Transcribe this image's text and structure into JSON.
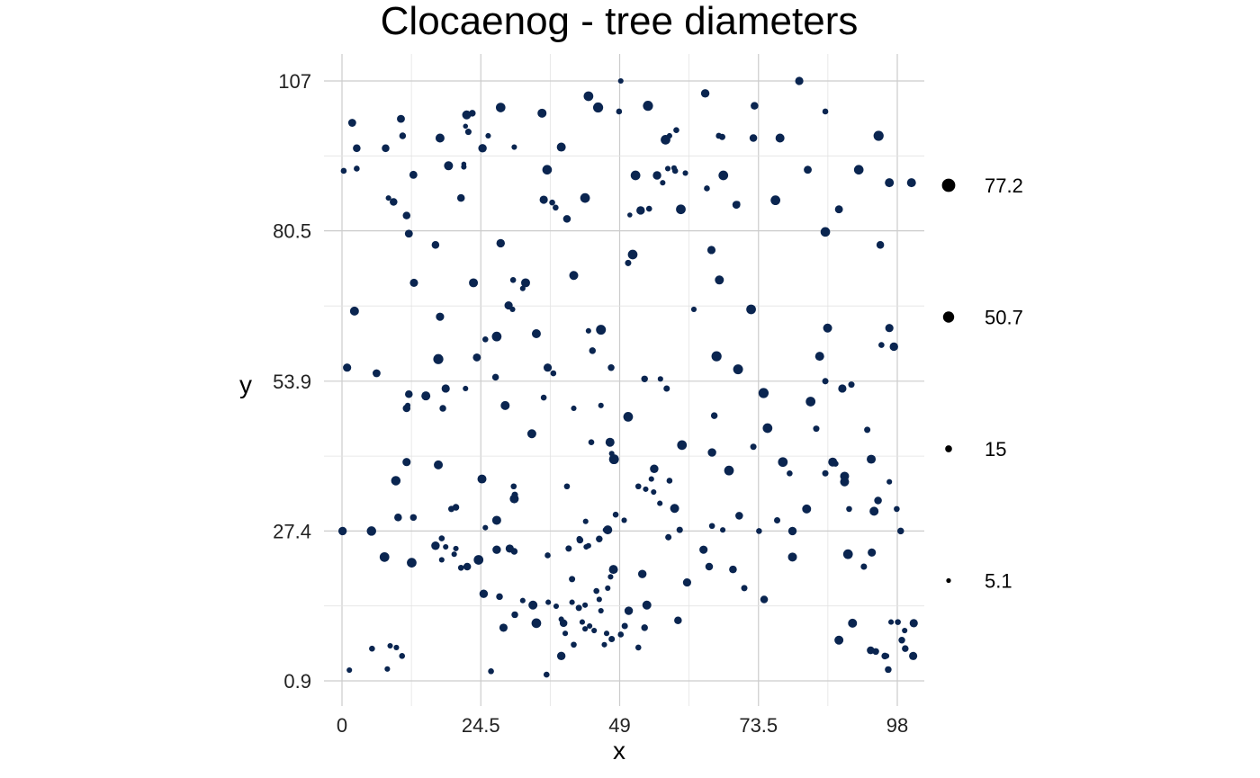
{
  "chart_data": {
    "type": "scatter",
    "title": "Clocaenog - tree diameters",
    "xlabel": "x",
    "ylabel": "y",
    "xlim": [
      0,
      102
    ],
    "ylim": [
      0.9,
      107
    ],
    "x_ticks": [
      0,
      24.5,
      49,
      73.5,
      98
    ],
    "y_ticks": [
      0.9,
      27.4,
      53.9,
      80.5,
      107
    ],
    "x_tick_labels": [
      "0",
      "24.5",
      "49",
      "73.5",
      "98"
    ],
    "y_tick_labels": [
      "0.9",
      "27.4",
      "53.9",
      "80.5",
      "107"
    ],
    "grid": true,
    "point_color": "#0a2550",
    "size_legend": {
      "position": "right",
      "entries": [
        {
          "label": "77.2",
          "value": 77.2
        },
        {
          "label": "50.7",
          "value": 50.7
        },
        {
          "label": "15",
          "value": 15
        },
        {
          "label": "5.1",
          "value": 5.1
        }
      ]
    },
    "points": [
      [
        0.3,
        91.1,
        10
      ],
      [
        1.8,
        99.6,
        22
      ],
      [
        2.6,
        95.1,
        20
      ],
      [
        2.6,
        91.5,
        10
      ],
      [
        7.7,
        95.1,
        20
      ],
      [
        10.4,
        100.3,
        22
      ],
      [
        10.7,
        97.3,
        14
      ],
      [
        9.1,
        85.6,
        20
      ],
      [
        8.2,
        86.3,
        8
      ],
      [
        12.6,
        90.4,
        22
      ],
      [
        11.4,
        83.2,
        20
      ],
      [
        17.3,
        96.9,
        30
      ],
      [
        18.8,
        92.0,
        30
      ],
      [
        21.0,
        86.3,
        20
      ],
      [
        21.5,
        91.8,
        8
      ],
      [
        21.5,
        92.3,
        6
      ],
      [
        22.0,
        101.0,
        30
      ],
      [
        23.0,
        101.3,
        14
      ],
      [
        22.3,
        98.0,
        12
      ],
      [
        21.8,
        99.0,
        6
      ],
      [
        24.8,
        95.1,
        26
      ],
      [
        25.8,
        97.3,
        8
      ],
      [
        28.0,
        102.3,
        35
      ],
      [
        30.4,
        95.3,
        8
      ],
      [
        28.0,
        78.3,
        26
      ],
      [
        30.2,
        71.8,
        10
      ],
      [
        32.4,
        71.3,
        30
      ],
      [
        35.3,
        101.3,
        30
      ],
      [
        36.2,
        91.3,
        35
      ],
      [
        38.7,
        95.3,
        30
      ],
      [
        35.6,
        86.0,
        24
      ],
      [
        37.1,
        85.5,
        10
      ],
      [
        37.7,
        84.6,
        10
      ],
      [
        39.7,
        82.6,
        20
      ],
      [
        42.9,
        86.3,
        36
      ],
      [
        43.5,
        104.3,
        36
      ],
      [
        45.2,
        102.3,
        40
      ],
      [
        49.2,
        107.0,
        8
      ],
      [
        48.9,
        101.6,
        10
      ],
      [
        54.0,
        102.6,
        40
      ],
      [
        57.1,
        96.6,
        36
      ],
      [
        55.6,
        90.3,
        26
      ],
      [
        57.8,
        97.3,
        8
      ],
      [
        59.0,
        98.3,
        10
      ],
      [
        56.6,
        89.0,
        8
      ],
      [
        57.5,
        91.5,
        8
      ],
      [
        58.8,
        91.1,
        10
      ],
      [
        58.6,
        91.6,
        8
      ],
      [
        60.6,
        90.7,
        8
      ],
      [
        51.8,
        90.3,
        36
      ],
      [
        52.7,
        84.1,
        26
      ],
      [
        50.8,
        83.3,
        6
      ],
      [
        54.2,
        84.4,
        10
      ],
      [
        51.3,
        76.3,
        36
      ],
      [
        59.8,
        84.3,
        36
      ],
      [
        64.1,
        104.8,
        26
      ],
      [
        65.2,
        77.1,
        24
      ],
      [
        66.6,
        71.8,
        30
      ],
      [
        67.3,
        90.3,
        36
      ],
      [
        64.4,
        88.0,
        10
      ],
      [
        66.5,
        97.3,
        10
      ],
      [
        67.1,
        97.1,
        12
      ],
      [
        69.6,
        85.1,
        22
      ],
      [
        69.8,
        85.3,
        8
      ],
      [
        72.6,
        96.9,
        20
      ],
      [
        72.8,
        102.6,
        20
      ],
      [
        77.3,
        96.9,
        30
      ],
      [
        76.5,
        85.9,
        36
      ],
      [
        80.7,
        107.0,
        24
      ],
      [
        82.2,
        91.3,
        22
      ],
      [
        85.3,
        101.6,
        10
      ],
      [
        85.3,
        80.3,
        35
      ],
      [
        87.7,
        84.3,
        22
      ],
      [
        91.2,
        91.3,
        35
      ],
      [
        94.7,
        97.3,
        40
      ],
      [
        96.6,
        89.0,
        30
      ],
      [
        95.0,
        78.0,
        20
      ],
      [
        97.4,
        60.0,
        26
      ],
      [
        100.5,
        89.0,
        30
      ],
      [
        2.2,
        66.3,
        30
      ],
      [
        11.8,
        80.0,
        22
      ],
      [
        12.7,
        71.3,
        24
      ],
      [
        16.5,
        78.0,
        20
      ],
      [
        17.3,
        65.3,
        24
      ],
      [
        17.0,
        57.8,
        40
      ],
      [
        23.2,
        71.3,
        30
      ],
      [
        25.3,
        61.3,
        10
      ],
      [
        27.3,
        61.8,
        36
      ],
      [
        29.4,
        67.3,
        24
      ],
      [
        30.1,
        66.6,
        8
      ],
      [
        31.9,
        70.3,
        8
      ],
      [
        34.3,
        62.3,
        30
      ],
      [
        36.3,
        56.3,
        24
      ],
      [
        37.3,
        55.3,
        10
      ],
      [
        40.9,
        72.6,
        30
      ],
      [
        43.5,
        62.8,
        8
      ],
      [
        44.2,
        59.3,
        14
      ],
      [
        45.7,
        63.0,
        38
      ],
      [
        47.5,
        56.3,
        14
      ],
      [
        50.5,
        74.8,
        12
      ],
      [
        53.4,
        54.3,
        14
      ],
      [
        56.2,
        54.3,
        8
      ],
      [
        57.3,
        52.6,
        12
      ],
      [
        62.1,
        66.6,
        8
      ],
      [
        66.1,
        58.3,
        40
      ],
      [
        69.9,
        56.0,
        38
      ],
      [
        72.2,
        66.6,
        36
      ],
      [
        85.7,
        63.3,
        30
      ],
      [
        84.3,
        58.3,
        30
      ],
      [
        88.3,
        52.6,
        24
      ],
      [
        85.3,
        53.9,
        12
      ],
      [
        89.9,
        53.3,
        12
      ],
      [
        95.2,
        60.3,
        10
      ],
      [
        96.6,
        63.3,
        24
      ],
      [
        0.9,
        56.3,
        24
      ],
      [
        6.1,
        55.3,
        22
      ],
      [
        11.8,
        51.6,
        20
      ],
      [
        11.4,
        49.1,
        20
      ],
      [
        11.6,
        49.6,
        8
      ],
      [
        14.8,
        51.3,
        30
      ],
      [
        17.8,
        49.1,
        14
      ],
      [
        18.3,
        52.6,
        24
      ],
      [
        21.8,
        52.6,
        8
      ],
      [
        23.8,
        58.1,
        22
      ],
      [
        27.1,
        54.6,
        14
      ],
      [
        28.8,
        49.6,
        30
      ],
      [
        35.6,
        51.0,
        10
      ],
      [
        40.9,
        49.1,
        8
      ],
      [
        44.0,
        43.1,
        10
      ],
      [
        45.7,
        49.6,
        8
      ],
      [
        47.3,
        43.1,
        30
      ],
      [
        47.6,
        41.1,
        8
      ],
      [
        50.5,
        47.6,
        36
      ],
      [
        48.0,
        40.1,
        38
      ],
      [
        55.1,
        38.4,
        26
      ],
      [
        57.8,
        36.3,
        10
      ],
      [
        60.0,
        42.6,
        36
      ],
      [
        65.3,
        41.3,
        26
      ],
      [
        65.7,
        47.8,
        14
      ],
      [
        68.3,
        38.1,
        36
      ],
      [
        72.6,
        42.3,
        12
      ],
      [
        74.4,
        51.8,
        40
      ],
      [
        75.1,
        45.6,
        36
      ],
      [
        77.8,
        39.6,
        36
      ],
      [
        79.0,
        37.6,
        10
      ],
      [
        82.7,
        50.3,
        36
      ],
      [
        83.7,
        45.5,
        12
      ],
      [
        85.3,
        37.6,
        12
      ],
      [
        87.1,
        39.3,
        10
      ],
      [
        86.6,
        39.6,
        30
      ],
      [
        88.7,
        37.1,
        30
      ],
      [
        89.5,
        31.3,
        10
      ],
      [
        92.7,
        45.3,
        12
      ],
      [
        93.4,
        40.1,
        30
      ],
      [
        96.6,
        36.1,
        8
      ],
      [
        97.9,
        31.3,
        10
      ],
      [
        98.6,
        27.4,
        14
      ],
      [
        9.5,
        36.3,
        34
      ],
      [
        11.4,
        39.6,
        24
      ],
      [
        17.0,
        39.1,
        30
      ],
      [
        20.1,
        31.6,
        14
      ],
      [
        19.3,
        31.3,
        12
      ],
      [
        24.7,
        36.6,
        30
      ],
      [
        25.3,
        28.0,
        8
      ],
      [
        27.3,
        29.3,
        30
      ],
      [
        30.3,
        35.3,
        10
      ],
      [
        30.4,
        33.1,
        30
      ],
      [
        30.5,
        33.8,
        12
      ],
      [
        33.5,
        44.6,
        30
      ],
      [
        39.7,
        35.3,
        10
      ],
      [
        41.9,
        26.0,
        10
      ],
      [
        43.0,
        29.1,
        8
      ],
      [
        48.3,
        30.3,
        10
      ],
      [
        49.8,
        29.3,
        8
      ],
      [
        46.5,
        27.6,
        8
      ],
      [
        52.3,
        35.3,
        10
      ],
      [
        53.6,
        34.8,
        8
      ],
      [
        55.0,
        34.3,
        8
      ],
      [
        54.6,
        36.6,
        8
      ],
      [
        56.1,
        32.3,
        8
      ],
      [
        58.7,
        31.4,
        30
      ],
      [
        59.6,
        27.6,
        12
      ],
      [
        65.3,
        28.3,
        10
      ],
      [
        67.2,
        27.6,
        8
      ],
      [
        70.1,
        30.1,
        20
      ],
      [
        73.6,
        27.4,
        10
      ],
      [
        76.8,
        29.3,
        12
      ],
      [
        79.5,
        27.4,
        26
      ],
      [
        82.0,
        31.3,
        30
      ],
      [
        88.7,
        36.1,
        30
      ],
      [
        93.9,
        30.9,
        30
      ],
      [
        94.6,
        32.8,
        20
      ],
      [
        0.1,
        27.4,
        26
      ],
      [
        5.2,
        27.4,
        34
      ],
      [
        9.9,
        29.8,
        20
      ],
      [
        12.6,
        29.8,
        14
      ],
      [
        16.5,
        24.8,
        26
      ],
      [
        17.6,
        26.1,
        10
      ],
      [
        18.3,
        24.6,
        8
      ],
      [
        19.8,
        23.3,
        8
      ],
      [
        17.6,
        22.3,
        8
      ],
      [
        20.1,
        24.3,
        8
      ],
      [
        21.0,
        20.9,
        10
      ],
      [
        22.1,
        21.1,
        20
      ],
      [
        24.1,
        22.3,
        36
      ],
      [
        27.3,
        24.1,
        26
      ],
      [
        29.6,
        24.3,
        24
      ],
      [
        30.4,
        23.8,
        14
      ],
      [
        36.3,
        23.1,
        10
      ],
      [
        40.0,
        24.3,
        12
      ],
      [
        42.0,
        25.8,
        14
      ],
      [
        43.1,
        24.6,
        8
      ],
      [
        45.4,
        26.0,
        14
      ],
      [
        43.5,
        24.8,
        8
      ],
      [
        46.9,
        27.6,
        30
      ],
      [
        47.9,
        20.6,
        30
      ],
      [
        47.4,
        19.3,
        8
      ],
      [
        53.0,
        19.8,
        26
      ],
      [
        57.6,
        26.3,
        12
      ],
      [
        63.8,
        24.1,
        24
      ],
      [
        64.8,
        21.1,
        20
      ],
      [
        69.0,
        20.6,
        20
      ],
      [
        71.0,
        17.3,
        12
      ],
      [
        79.5,
        22.8,
        30
      ],
      [
        89.3,
        23.3,
        36
      ],
      [
        92.1,
        21.1,
        12
      ],
      [
        93.5,
        23.6,
        24
      ],
      [
        7.5,
        22.8,
        36
      ],
      [
        12.3,
        21.8,
        36
      ],
      [
        25.0,
        16.3,
        26
      ],
      [
        28.5,
        10.3,
        24
      ],
      [
        26.3,
        2.6,
        10
      ],
      [
        36.1,
        2.0,
        10
      ],
      [
        34.3,
        11.1,
        36
      ],
      [
        39.1,
        11.1,
        20
      ],
      [
        40.6,
        14.8,
        8
      ],
      [
        41.8,
        13.8,
        12
      ],
      [
        42.9,
        14.3,
        8
      ],
      [
        42.4,
        11.3,
        8
      ],
      [
        44.9,
        16.8,
        10
      ],
      [
        45.4,
        15.3,
        8
      ],
      [
        45.7,
        13.3,
        8
      ],
      [
        43.7,
        10.6,
        8
      ],
      [
        39.4,
        9.3,
        8
      ],
      [
        38.7,
        11.8,
        8
      ],
      [
        37.8,
        14.1,
        8
      ],
      [
        36.4,
        14.8,
        8
      ],
      [
        42.9,
        10.1,
        8
      ],
      [
        44.5,
        9.8,
        8
      ],
      [
        46.7,
        9.3,
        8
      ],
      [
        46.3,
        7.3,
        8
      ],
      [
        49.9,
        10.6,
        12
      ],
      [
        49.2,
        9.1,
        10
      ],
      [
        52.3,
        6.8,
        10
      ],
      [
        50.6,
        13.3,
        26
      ],
      [
        53.8,
        14.3,
        30
      ],
      [
        59.3,
        11.6,
        20
      ],
      [
        38.7,
        5.3,
        26
      ],
      [
        40.9,
        7.3,
        10
      ],
      [
        47.6,
        8.3,
        12
      ],
      [
        53.4,
        10.3,
        14
      ],
      [
        33.7,
        14.3,
        30
      ],
      [
        30.5,
        12.6,
        14
      ],
      [
        27.8,
        15.8,
        14
      ],
      [
        31.9,
        15.1,
        8
      ],
      [
        40.6,
        18.9,
        12
      ],
      [
        46.9,
        17.3,
        8
      ],
      [
        60.9,
        18.3,
        24
      ],
      [
        74.5,
        15.3,
        20
      ],
      [
        87.7,
        8.1,
        30
      ],
      [
        90.1,
        11.1,
        30
      ],
      [
        93.3,
        6.3,
        20
      ],
      [
        94.2,
        6.1,
        14
      ],
      [
        95.8,
        5.3,
        14
      ],
      [
        96.4,
        2.9,
        14
      ],
      [
        98.8,
        8.1,
        14
      ],
      [
        99.4,
        6.6,
        14
      ],
      [
        100.8,
        5.3,
        24
      ],
      [
        1.3,
        2.8,
        8
      ],
      [
        5.3,
        6.6,
        10
      ],
      [
        8.0,
        3.0,
        8
      ],
      [
        8.5,
        7.1,
        8
      ],
      [
        9.6,
        6.8,
        8
      ],
      [
        10.6,
        5.3,
        10
      ],
      [
        96.1,
        5.3,
        8
      ],
      [
        96.9,
        11.3,
        8
      ],
      [
        98.1,
        11.3,
        10
      ],
      [
        99.3,
        9.8,
        8
      ],
      [
        100.9,
        11.1,
        24
      ]
    ]
  }
}
